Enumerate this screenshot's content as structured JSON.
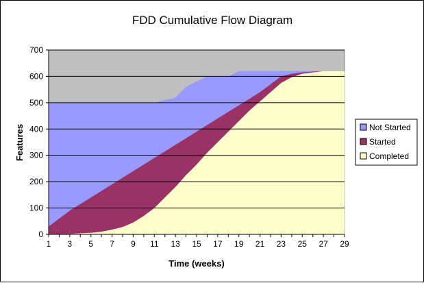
{
  "chart_data": {
    "type": "area",
    "stacked": true,
    "title": "FDD Cumulative Flow Diagram",
    "xlabel": "Time (weeks)",
    "ylabel": "Features",
    "ylim": [
      0,
      700
    ],
    "yticks": [
      0,
      100,
      200,
      300,
      400,
      500,
      600,
      700
    ],
    "x": [
      1,
      2,
      3,
      4,
      5,
      6,
      7,
      8,
      9,
      10,
      11,
      12,
      13,
      14,
      15,
      16,
      17,
      18,
      19,
      20,
      21,
      22,
      23,
      24,
      25,
      26,
      27,
      28,
      29
    ],
    "xtick_labels": [
      "1",
      "3",
      "5",
      "7",
      "9",
      "11",
      "13",
      "15",
      "17",
      "19",
      "21",
      "23",
      "25",
      "27",
      "29"
    ],
    "grid": "horizontal",
    "legend_position": "right",
    "series": [
      {
        "name": "Completed",
        "color": "#FFFFCC",
        "values": [
          0,
          0,
          2,
          4,
          6,
          10,
          18,
          28,
          45,
          70,
          100,
          140,
          180,
          225,
          265,
          310,
          350,
          390,
          430,
          470,
          505,
          540,
          575,
          597,
          610,
          615,
          620,
          620,
          620
        ]
      },
      {
        "name": "Started",
        "color": "#993366",
        "values": [
          30,
          60,
          90,
          115,
          140,
          165,
          190,
          215,
          240,
          265,
          290,
          315,
          340,
          365,
          390,
          415,
          440,
          465,
          490,
          515,
          540,
          570,
          600,
          610,
          615,
          618,
          620,
          620,
          620
        ]
      },
      {
        "name": "Not Started",
        "color": "#9999FF",
        "values": [
          500,
          500,
          500,
          500,
          500,
          500,
          500,
          500,
          500,
          500,
          500,
          510,
          520,
          560,
          580,
          600,
          600,
          600,
          620,
          620,
          620,
          620,
          620,
          620,
          620,
          620,
          620,
          620,
          620
        ]
      }
    ]
  }
}
